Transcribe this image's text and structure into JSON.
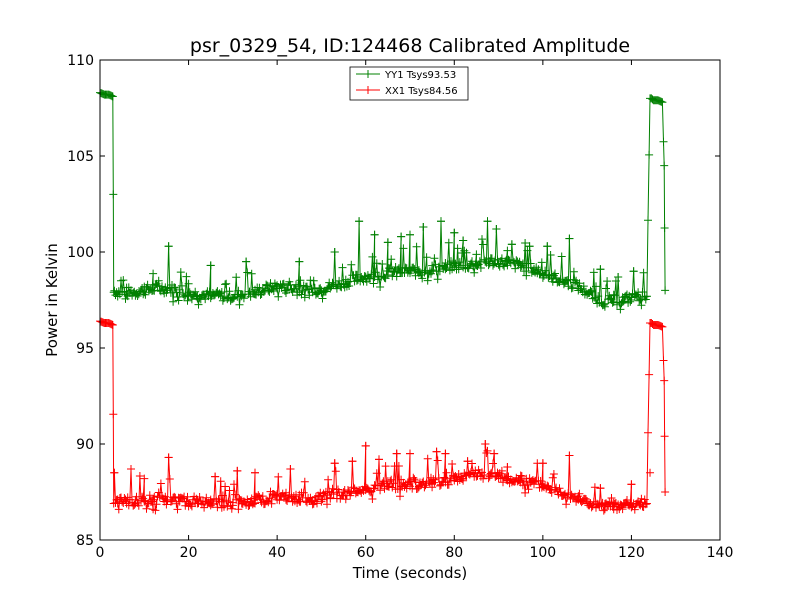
{
  "chart_data": {
    "type": "line",
    "title": "psr_0329_54, ID:124468 Calibrated Amplitude",
    "xlabel": "Time (seconds)",
    "ylabel": "Power in Kelvin",
    "xlim": [
      0,
      140
    ],
    "ylim": [
      85,
      110
    ],
    "xticks": [
      0,
      20,
      40,
      60,
      80,
      100,
      120,
      140
    ],
    "yticks": [
      85,
      90,
      95,
      100,
      105,
      110
    ],
    "grid": false,
    "legend_position": "top-center",
    "marker": "+",
    "series": [
      {
        "name": "YY1 Tsys93.53",
        "color": "#008000",
        "x": [
          0,
          1,
          2,
          2.9,
          3.1,
          4,
          6,
          8,
          10,
          12,
          15,
          18,
          20,
          22,
          25,
          28,
          30,
          32,
          35,
          38,
          40,
          42,
          45,
          48,
          50,
          52,
          55,
          58,
          60,
          62,
          65,
          68,
          70,
          72,
          75,
          78,
          80,
          82,
          85,
          88,
          90,
          92,
          95,
          98,
          100,
          102,
          105,
          108,
          110,
          112,
          114,
          116,
          118,
          120,
          122,
          123.5,
          124.2,
          124.5,
          125,
          126,
          127,
          127.4,
          127.6
        ],
        "values": [
          108.3,
          108.2,
          108.2,
          108.1,
          97.9,
          97.8,
          97.8,
          97.8,
          97.9,
          98.0,
          98.0,
          97.9,
          97.7,
          97.7,
          97.6,
          97.6,
          97.6,
          97.7,
          97.8,
          98.0,
          98.1,
          98.0,
          97.9,
          97.9,
          98.0,
          98.1,
          98.3,
          98.5,
          98.6,
          98.7,
          98.8,
          98.9,
          98.9,
          98.9,
          99.0,
          99.1,
          99.2,
          99.2,
          99.3,
          99.4,
          99.4,
          99.3,
          99.2,
          99.0,
          98.8,
          98.6,
          98.4,
          98.1,
          97.8,
          97.5,
          97.3,
          97.4,
          97.4,
          97.5,
          97.6,
          97.7,
          108.0,
          108.0,
          107.9,
          107.9,
          107.8,
          104.5,
          98.0
        ],
        "spikes": [
          {
            "x": 15.5,
            "y": 100.3
          },
          {
            "x": 25,
            "y": 99.3
          },
          {
            "x": 33,
            "y": 99.5
          },
          {
            "x": 45,
            "y": 99.5
          },
          {
            "x": 53,
            "y": 100.0
          },
          {
            "x": 58.5,
            "y": 101.6
          },
          {
            "x": 62,
            "y": 100.9
          },
          {
            "x": 65,
            "y": 100.5
          },
          {
            "x": 68,
            "y": 100.8
          },
          {
            "x": 70,
            "y": 100.9
          },
          {
            "x": 73,
            "y": 101.3
          },
          {
            "x": 77,
            "y": 101.6
          },
          {
            "x": 80,
            "y": 101.0
          },
          {
            "x": 82,
            "y": 100.6
          },
          {
            "x": 87.5,
            "y": 101.6
          },
          {
            "x": 89.5,
            "y": 101.2
          },
          {
            "x": 93,
            "y": 100.4
          },
          {
            "x": 97,
            "y": 100.3
          },
          {
            "x": 101,
            "y": 100.3
          },
          {
            "x": 106,
            "y": 100.7
          },
          {
            "x": 113,
            "y": 99.1
          },
          {
            "x": 117,
            "y": 98.7
          },
          {
            "x": 120.5,
            "y": 99.0
          }
        ]
      },
      {
        "name": "XX1 Tsys84.56",
        "color": "#ff0000",
        "x": [
          0,
          1,
          2,
          2.9,
          3.1,
          4,
          6,
          8,
          10,
          12,
          15,
          18,
          20,
          22,
          25,
          28,
          30,
          32,
          35,
          38,
          40,
          42,
          45,
          48,
          50,
          52,
          55,
          58,
          60,
          62,
          65,
          68,
          70,
          72,
          75,
          78,
          80,
          82,
          85,
          88,
          90,
          92,
          95,
          98,
          100,
          102,
          105,
          108,
          110,
          112,
          114,
          116,
          118,
          120,
          122,
          123.5,
          124.2,
          124.5,
          125,
          126,
          127,
          127.4,
          127.6
        ],
        "values": [
          96.4,
          96.3,
          96.3,
          96.2,
          86.9,
          86.9,
          86.9,
          86.9,
          87.0,
          87.1,
          87.1,
          87.0,
          86.9,
          86.9,
          86.8,
          86.8,
          86.8,
          86.9,
          86.9,
          87.0,
          87.1,
          87.1,
          87.0,
          87.0,
          87.1,
          87.2,
          87.3,
          87.5,
          87.6,
          87.7,
          87.8,
          87.8,
          87.8,
          87.8,
          87.9,
          88.0,
          88.1,
          88.2,
          88.3,
          88.3,
          88.2,
          88.1,
          88.0,
          87.9,
          87.8,
          87.6,
          87.4,
          87.1,
          86.9,
          86.7,
          86.6,
          86.6,
          86.7,
          86.7,
          86.8,
          86.9,
          96.3,
          96.3,
          96.2,
          96.2,
          96.1,
          93.3,
          87.5
        ],
        "spikes": [
          {
            "x": 3.2,
            "y": 88.5
          },
          {
            "x": 7,
            "y": 88.7
          },
          {
            "x": 15.5,
            "y": 89.3
          },
          {
            "x": 26,
            "y": 88.3
          },
          {
            "x": 31,
            "y": 88.6
          },
          {
            "x": 35,
            "y": 88.5
          },
          {
            "x": 43,
            "y": 88.7
          },
          {
            "x": 53,
            "y": 89.0
          },
          {
            "x": 57,
            "y": 89.1
          },
          {
            "x": 60,
            "y": 89.9
          },
          {
            "x": 63,
            "y": 89.2
          },
          {
            "x": 67,
            "y": 89.5
          },
          {
            "x": 70,
            "y": 89.5
          },
          {
            "x": 76,
            "y": 89.6
          },
          {
            "x": 78,
            "y": 89.5
          },
          {
            "x": 83,
            "y": 89.1
          },
          {
            "x": 87,
            "y": 90.0
          },
          {
            "x": 89,
            "y": 89.5
          },
          {
            "x": 92,
            "y": 88.8
          },
          {
            "x": 100,
            "y": 89.0
          },
          {
            "x": 106,
            "y": 89.4
          },
          {
            "x": 113,
            "y": 87.7
          },
          {
            "x": 120,
            "y": 87.9
          },
          {
            "x": 124.2,
            "y": 88.5
          }
        ]
      }
    ]
  }
}
